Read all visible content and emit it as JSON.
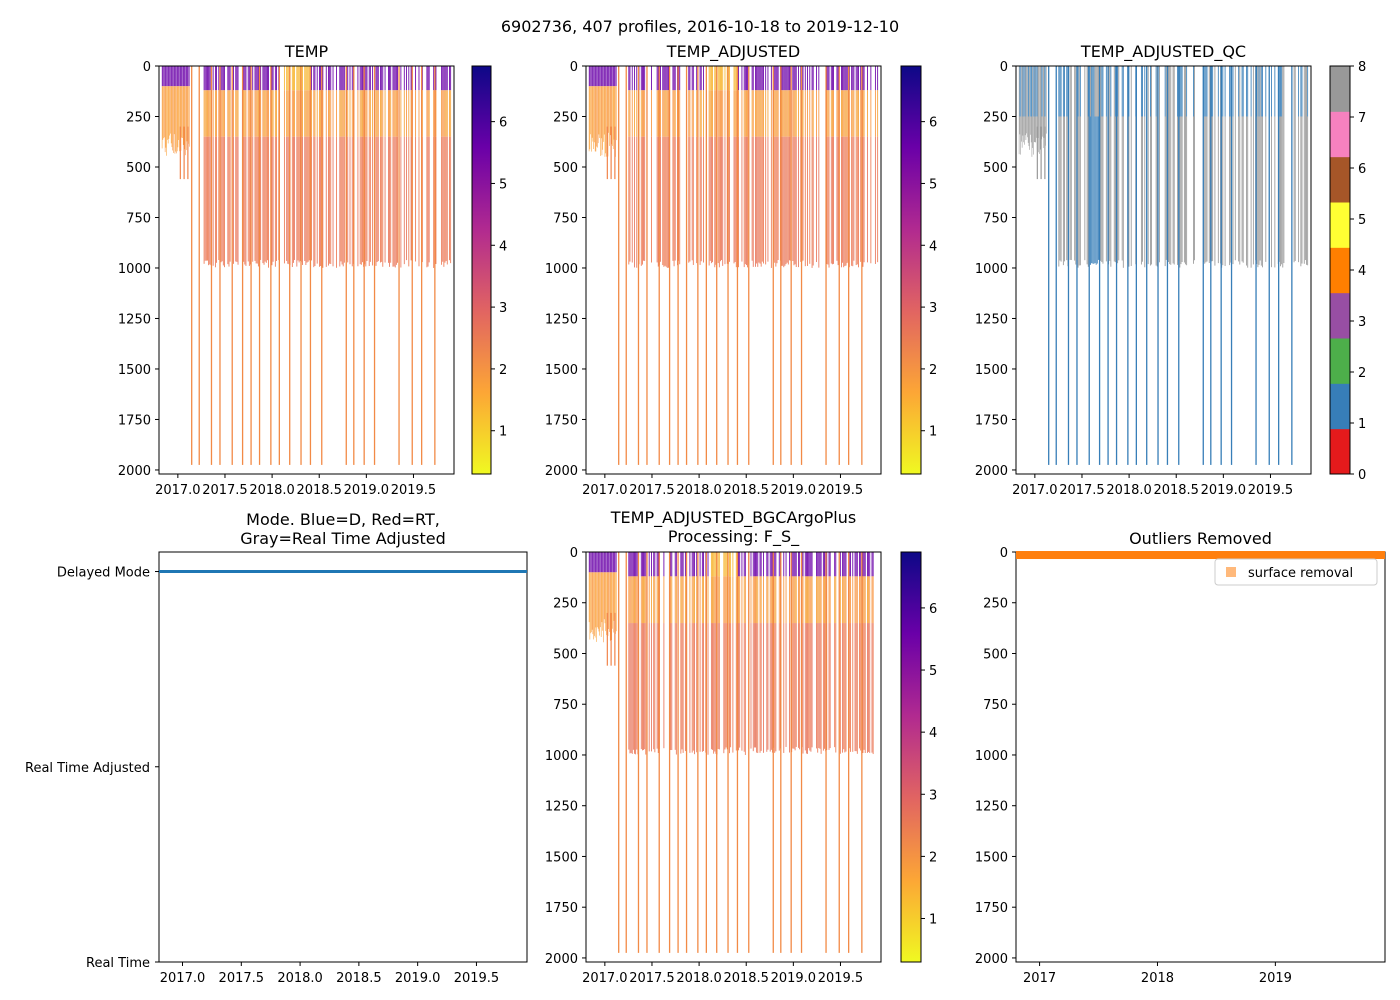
{
  "figure": {
    "suptitle": "6902736, 407 profiles, 2016-10-18 to 2019-12-10"
  },
  "colors": {
    "cmap_plasma_r": [
      "#f0f921",
      "#fca636",
      "#e16462",
      "#b12a90",
      "#6a00a8",
      "#0d0887"
    ],
    "qc_colors": [
      "#e41a1c",
      "#377eb8",
      "#4daf4a",
      "#984ea3",
      "#ff7f00",
      "#ffff33",
      "#a65628",
      "#f781bf",
      "#999999"
    ],
    "mode_line": "#1f77b4",
    "outlier_marker": "#ff7f0e"
  },
  "chart_data": [
    {
      "id": "temp",
      "type": "heatmap",
      "title": "TEMP",
      "xlim": [
        2016.8,
        2019.93
      ],
      "ylim": [
        2020,
        0
      ],
      "xticks": [
        "2017.0",
        "2017.5",
        "2018.0",
        "2018.5",
        "2019.0",
        "2019.5"
      ],
      "yticks": [
        "0",
        "250",
        "500",
        "750",
        "1000",
        "1250",
        "1500",
        "1750",
        "2000"
      ],
      "colorbar": {
        "range": [
          0.3,
          6.9
        ],
        "ticks": [
          "1",
          "2",
          "3",
          "4",
          "5",
          "6"
        ]
      }
    },
    {
      "id": "temp_adj",
      "type": "heatmap",
      "title": "TEMP_ADJUSTED",
      "xlim": [
        2016.8,
        2019.93
      ],
      "ylim": [
        2020,
        0
      ],
      "xticks": [
        "2017.0",
        "2017.5",
        "2018.0",
        "2018.5",
        "2019.0",
        "2019.5"
      ],
      "yticks": [
        "0",
        "250",
        "500",
        "750",
        "1000",
        "1250",
        "1500",
        "1750",
        "2000"
      ],
      "colorbar": {
        "range": [
          0.3,
          6.9
        ],
        "ticks": [
          "1",
          "2",
          "3",
          "4",
          "5",
          "6"
        ]
      }
    },
    {
      "id": "temp_qc",
      "type": "heatmap",
      "title": "TEMP_ADJUSTED_QC",
      "xlim": [
        2016.8,
        2019.93
      ],
      "ylim": [
        2020,
        0
      ],
      "xticks": [
        "2017.0",
        "2017.5",
        "2018.0",
        "2018.5",
        "2019.0",
        "2019.5"
      ],
      "yticks": [
        "0",
        "250",
        "500",
        "750",
        "1000",
        "1250",
        "1500",
        "1750",
        "2000"
      ],
      "colorbar": {
        "range": [
          0,
          8
        ],
        "ticks": [
          "0",
          "1",
          "2",
          "3",
          "4",
          "5",
          "6",
          "7",
          "8"
        ]
      }
    },
    {
      "id": "mode",
      "type": "line",
      "title_lines": [
        "Mode. Blue=D, Red=RT,",
        "Gray=Real Time Adjusted"
      ],
      "xlim": [
        2016.8,
        2019.93
      ],
      "xticks": [
        "2017.0",
        "2017.5",
        "2018.0",
        "2018.5",
        "2019.0",
        "2019.5"
      ],
      "ylabels": [
        "Delayed Mode",
        "Real Time Adjusted",
        "Real Time"
      ],
      "series": [
        {
          "name": "mode",
          "x": [
            2016.8,
            2019.93
          ],
          "y": [
            2,
            2
          ]
        }
      ]
    },
    {
      "id": "bgc",
      "type": "heatmap",
      "title_lines": [
        "TEMP_ADJUSTED_BGCArgoPlus",
        "Processing: F_S_"
      ],
      "xlim": [
        2016.8,
        2019.93
      ],
      "ylim": [
        2020,
        0
      ],
      "xticks": [
        "2017.0",
        "2017.5",
        "2018.0",
        "2018.5",
        "2019.0",
        "2019.5"
      ],
      "yticks": [
        "0",
        "250",
        "500",
        "750",
        "1000",
        "1250",
        "1500",
        "1750",
        "2000"
      ],
      "colorbar": {
        "range": [
          0.3,
          6.9
        ],
        "ticks": [
          "1",
          "2",
          "3",
          "4",
          "5",
          "6"
        ]
      }
    },
    {
      "id": "outliers",
      "type": "scatter",
      "title": "Outliers Removed",
      "xlim": [
        2016.8,
        2019.93
      ],
      "ylim": [
        2020,
        0
      ],
      "xticks": [
        "2017",
        "2018",
        "2019"
      ],
      "yticks": [
        "0",
        "250",
        "500",
        "750",
        "1000",
        "1250",
        "1500",
        "1750",
        "2000"
      ],
      "legend": [
        "surface removal"
      ],
      "series": [
        {
          "name": "surface removal",
          "x": [
            2016.8,
            2019.93
          ],
          "y": [
            5,
            5
          ]
        }
      ]
    }
  ]
}
